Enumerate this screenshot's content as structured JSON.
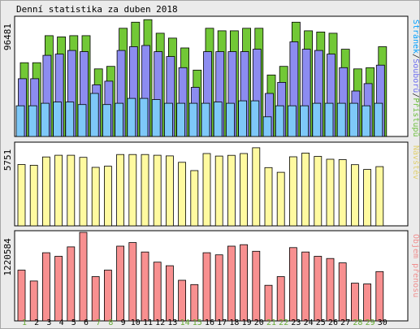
{
  "chart_data": [
    {
      "type": "bar",
      "title": "Denní statistika za duben 2018",
      "max_label": "96481",
      "legend": [
        {
          "text": "Stránek",
          "color": "#00a0ff"
        },
        {
          "text": "/",
          "color": "#2d2d2d"
        },
        {
          "text": "Souborů",
          "color": "#7070f0"
        },
        {
          "text": "/",
          "color": "#2d2d2d"
        },
        {
          "text": "Přístupů",
          "color": "#6fc040"
        }
      ],
      "categories": [
        "1",
        "2",
        "3",
        "4",
        "5",
        "6",
        "7",
        "8",
        "9",
        "10",
        "11",
        "12",
        "13",
        "14",
        "15",
        "16",
        "17",
        "18",
        "19",
        "20",
        "21",
        "22",
        "23",
        "24",
        "25",
        "26",
        "27",
        "28",
        "29",
        "30"
      ],
      "weekend_days": [
        "1",
        "7",
        "8",
        "14",
        "15",
        "21",
        "22",
        "28",
        "29"
      ],
      "ylim": [
        0,
        96481
      ],
      "series": [
        {
          "name": "Přístupů",
          "color": "#72c836",
          "values": [
            60000,
            60000,
            82000,
            81000,
            82000,
            82000,
            55000,
            57000,
            88000,
            93000,
            95000,
            84000,
            80000,
            72000,
            54000,
            88000,
            86000,
            86000,
            88000,
            88000,
            50000,
            57000,
            93000,
            86000,
            85000,
            84000,
            71000,
            55000,
            56000,
            73000
          ]
        },
        {
          "name": "Souborů",
          "color": "#8c8cf0",
          "values": [
            47000,
            47000,
            66000,
            67000,
            70000,
            69000,
            42000,
            45000,
            70000,
            73000,
            74000,
            69000,
            65000,
            56000,
            40000,
            69000,
            69000,
            69000,
            69000,
            71000,
            35000,
            44000,
            77000,
            71000,
            70000,
            67000,
            56000,
            37000,
            43000,
            58000
          ]
        },
        {
          "name": "Stránek",
          "color": "#7ec8f8",
          "values": [
            25000,
            25000,
            27000,
            28000,
            28000,
            26000,
            35000,
            26000,
            27000,
            31000,
            31000,
            30000,
            27000,
            27000,
            27000,
            27000,
            28000,
            27000,
            29000,
            29000,
            16000,
            25000,
            25000,
            25000,
            27000,
            27000,
            27000,
            27000,
            25000,
            27000
          ]
        }
      ]
    },
    {
      "type": "bar",
      "max_label": "5751",
      "legend": [
        {
          "text": "Návštěv",
          "color": "#e0d070"
        }
      ],
      "categories": [
        "1",
        "2",
        "3",
        "4",
        "5",
        "6",
        "7",
        "8",
        "9",
        "10",
        "11",
        "12",
        "13",
        "14",
        "15",
        "16",
        "17",
        "18",
        "19",
        "20",
        "21",
        "22",
        "23",
        "24",
        "25",
        "26",
        "27",
        "28",
        "29",
        "30"
      ],
      "ylim": [
        0,
        5751
      ],
      "series": [
        {
          "name": "Návštěv",
          "color": "#fffaa0",
          "values": [
            4300,
            4250,
            4830,
            4950,
            4950,
            4800,
            4100,
            4180,
            5000,
            5000,
            5000,
            4950,
            4900,
            4450,
            3870,
            5070,
            4890,
            4940,
            5070,
            5470,
            4080,
            3750,
            4840,
            5100,
            4870,
            4670,
            4640,
            4290,
            3950,
            4150
          ]
        }
      ]
    },
    {
      "type": "bar",
      "max_label": "1220584",
      "legend": [
        {
          "text": "Objem přenosu",
          "color": "#f09090"
        }
      ],
      "categories": [
        "1",
        "2",
        "3",
        "4",
        "5",
        "6",
        "7",
        "8",
        "9",
        "10",
        "11",
        "12",
        "13",
        "14",
        "15",
        "16",
        "17",
        "18",
        "19",
        "20",
        "21",
        "22",
        "23",
        "24",
        "25",
        "26",
        "27",
        "28",
        "29",
        "30"
      ],
      "ylim": [
        0,
        1220584
      ],
      "series": [
        {
          "name": "Objem přenosu",
          "color": "#f89090",
          "values": [
            700000,
            550000,
            940000,
            890000,
            1020000,
            1220584,
            610000,
            700000,
            1030000,
            1080000,
            950000,
            810000,
            760000,
            560000,
            500000,
            940000,
            910000,
            1030000,
            1050000,
            960000,
            490000,
            610000,
            1010000,
            950000,
            890000,
            860000,
            800000,
            520000,
            510000,
            680000
          ]
        }
      ]
    }
  ]
}
